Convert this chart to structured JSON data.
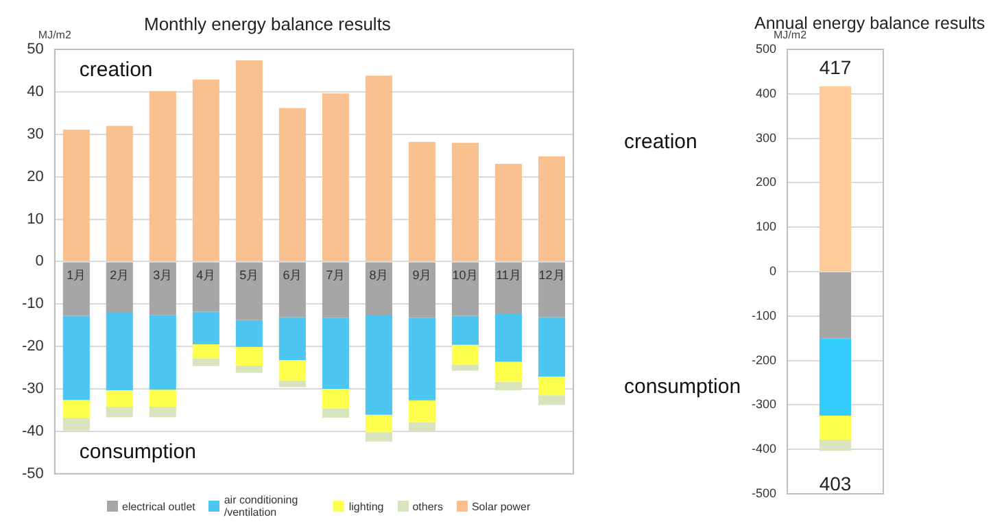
{
  "chart_data": [
    {
      "type": "bar",
      "title": "Monthly energy balance results",
      "ylabel": "MJ/m2",
      "stacked": true,
      "categories": [
        "1月",
        "2月",
        "3月",
        "4月",
        "5月",
        "6月",
        "7月",
        "8月",
        "9月",
        "10月",
        "11月",
        "12月"
      ],
      "series": [
        {
          "name": "electrical outlet",
          "color": "#a6a6a6",
          "values": [
            -12.8,
            -11.9,
            -12.6,
            -11.8,
            -13.8,
            -13.1,
            -13.3,
            -12.7,
            -13.3,
            -12.8,
            -12.2,
            -13.1
          ]
        },
        {
          "name": "air conditioning /ventilation",
          "color": "#4dc6f2",
          "values": [
            -19.8,
            -18.4,
            -17.6,
            -7.7,
            -6.3,
            -10.1,
            -16.7,
            -23.4,
            -19.4,
            -6.8,
            -11.4,
            -14.0
          ]
        },
        {
          "name": "lighting",
          "color": "#ffff4d",
          "values": [
            -4.2,
            -3.9,
            -4.0,
            -3.3,
            -4.4,
            -4.8,
            -4.6,
            -4.1,
            -5.1,
            -4.6,
            -4.7,
            -4.4
          ]
        },
        {
          "name": "others",
          "color": "#d7e4bd",
          "values": [
            -3.0,
            -2.5,
            -2.5,
            -1.8,
            -1.7,
            -1.6,
            -2.2,
            -2.2,
            -2.1,
            -1.5,
            -2.0,
            -2.3
          ]
        },
        {
          "name": "Solar power",
          "color": "#f9c090",
          "values": [
            31.1,
            32.0,
            40.2,
            42.9,
            47.4,
            36.2,
            39.6,
            43.8,
            28.2,
            28.0,
            23.0,
            24.8
          ]
        }
      ],
      "ylim": [
        -50,
        50
      ],
      "yticks": [
        -50,
        -40,
        -30,
        -20,
        -10,
        0,
        10,
        20,
        30,
        40,
        50
      ],
      "grid": "y",
      "legend": "bottom",
      "annotations": [
        "creation",
        "consumption"
      ]
    },
    {
      "type": "bar",
      "title": "Annual energy balance results",
      "ylabel": "MJ/m2",
      "stacked": true,
      "categories": [
        null
      ],
      "series": [
        {
          "color": "#a6a6a6",
          "values": [
            -150
          ]
        },
        {
          "color": "#33ccff",
          "values": [
            -174
          ]
        },
        {
          "color": "#ffff4d",
          "values": [
            -54
          ]
        },
        {
          "color": "#d7e4bd",
          "values": [
            -25
          ]
        },
        {
          "color": "#ffcc99",
          "values": [
            417
          ]
        }
      ],
      "ylim": [
        -500,
        500
      ],
      "yticks": [
        -500,
        -400,
        -300,
        -200,
        -100,
        0,
        100,
        200,
        300,
        400,
        500
      ],
      "grid": "y",
      "tick_labels": "y",
      "annotations": [
        "creation",
        "consumption",
        {
          "text": "417",
          "y": 417
        },
        {
          "text": "403",
          "y": -403
        }
      ]
    }
  ]
}
